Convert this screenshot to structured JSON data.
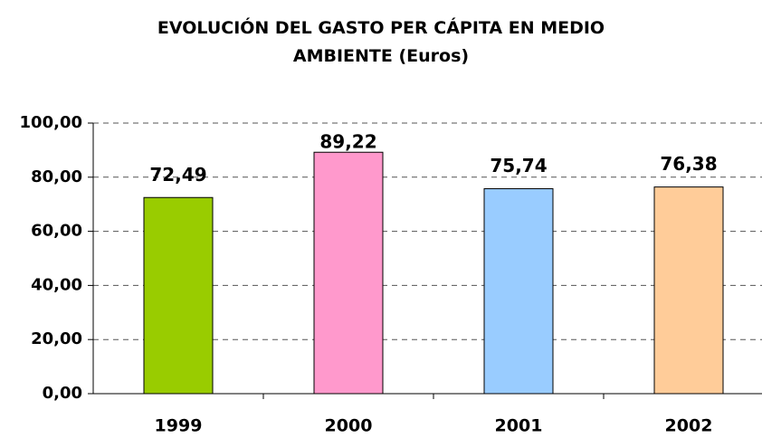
{
  "chart_data": {
    "type": "bar",
    "title": "EVOLUCIÓN DEL GASTO PER CÁPITA EN MEDIO AMBIENTE (Euros)",
    "categories": [
      "1999",
      "2000",
      "2001",
      "2002"
    ],
    "values": [
      72.49,
      89.22,
      75.74,
      76.38
    ],
    "value_labels": [
      "72,49",
      "89,22",
      "75,74",
      "76,38"
    ],
    "colors": [
      "#99cc00",
      "#ff99cc",
      "#99ccff",
      "#ffcc99"
    ],
    "ylim": [
      0,
      100
    ],
    "yticks": [
      {
        "value": 0,
        "label": "0,00"
      },
      {
        "value": 20,
        "label": "20,00"
      },
      {
        "value": 40,
        "label": "40,00"
      },
      {
        "value": 60,
        "label": "60,00"
      },
      {
        "value": 80,
        "label": "80,00"
      },
      {
        "value": 100,
        "label": "100,00"
      }
    ],
    "grid": true
  }
}
